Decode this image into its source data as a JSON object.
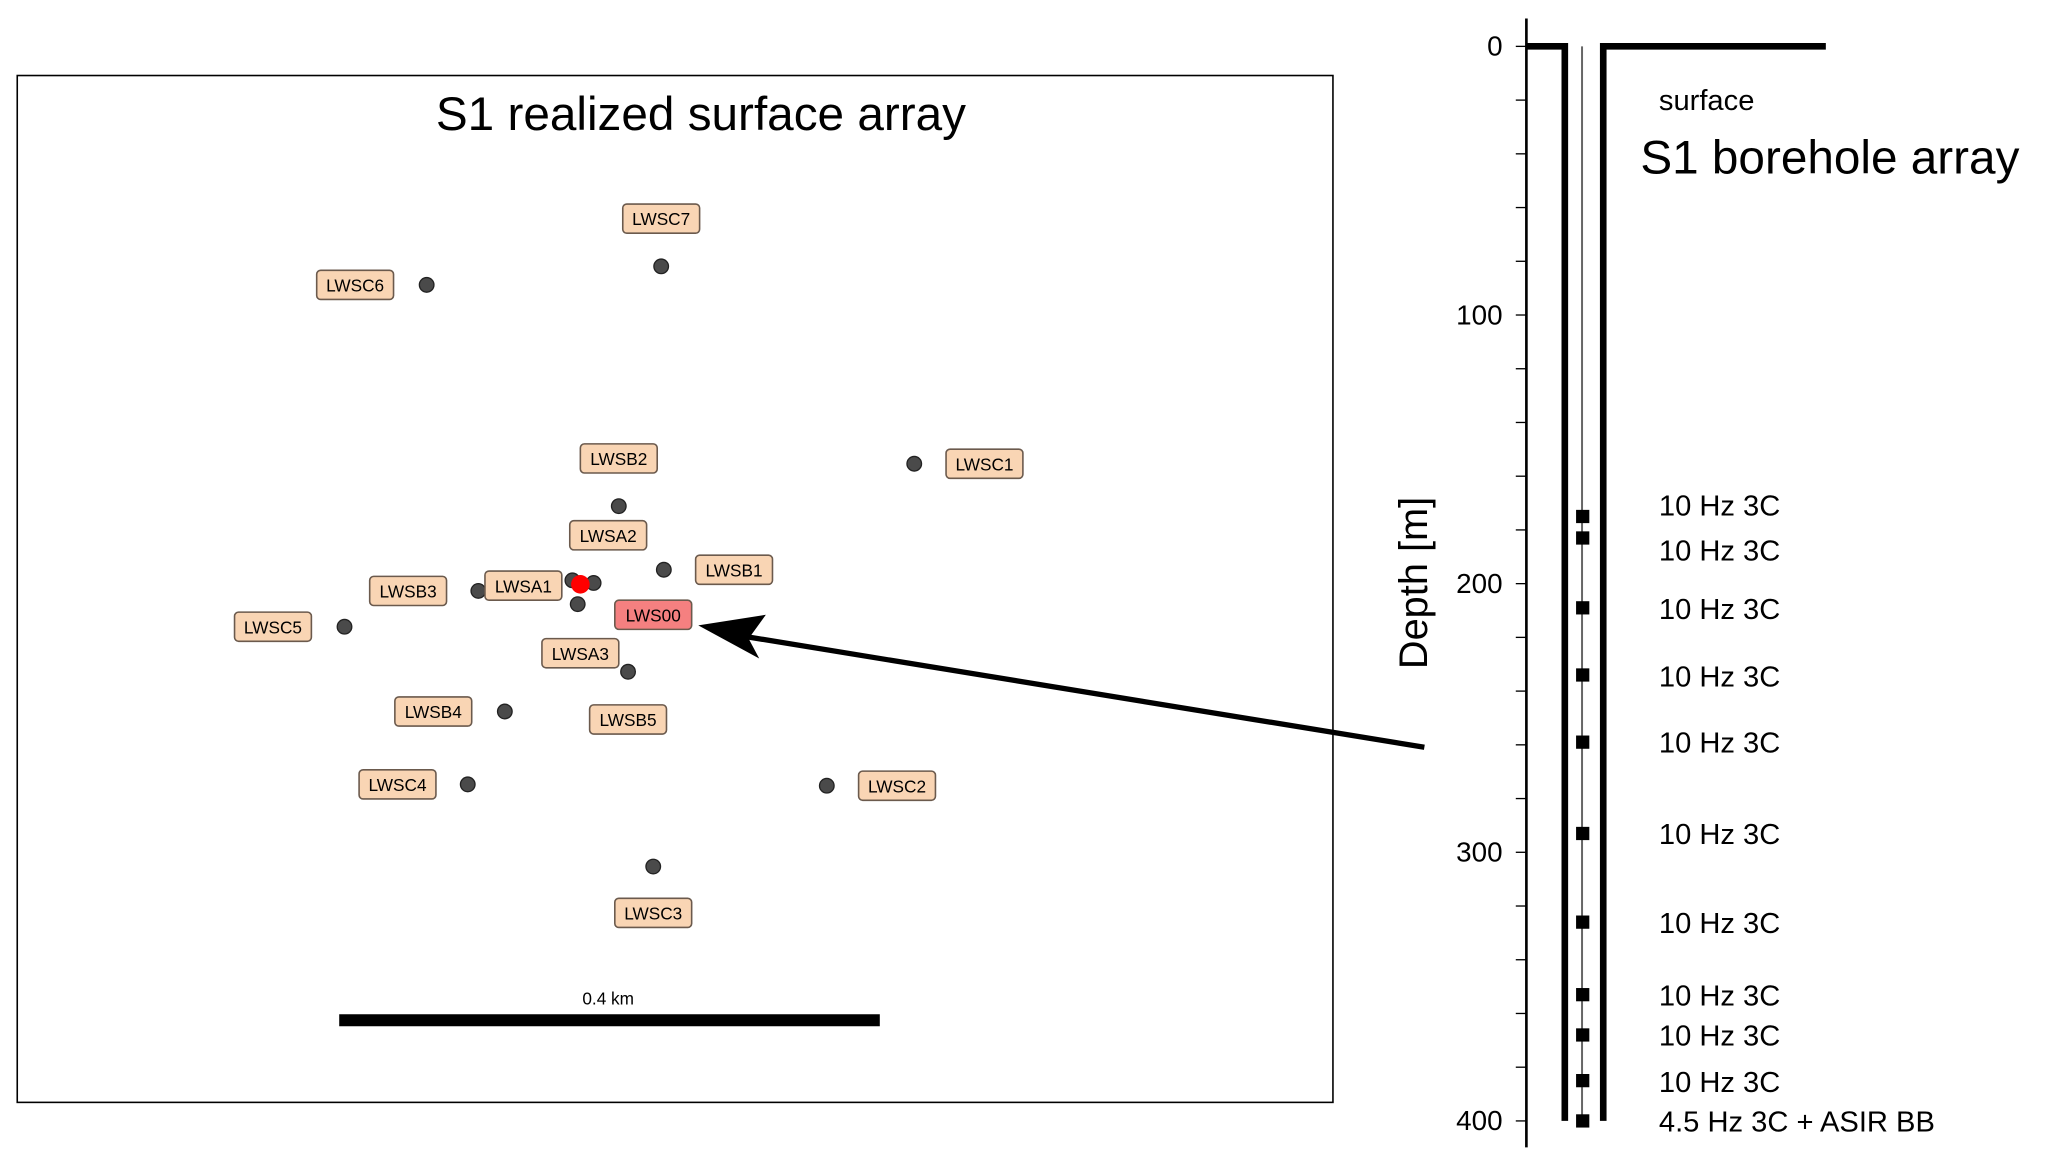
{
  "surface_map": {
    "title": "S1 realized surface array",
    "scale_bar_label": "0.4 km",
    "station_color": "#4a4a4a",
    "label_fill": "#f9d5b4",
    "reference_station": {
      "name": "LWS00",
      "color": "#ff0000",
      "label_fill": "#f58080"
    },
    "stations": [
      "LWSC7",
      "LWSC6",
      "LWSC1",
      "LWSB2",
      "LWSA2",
      "LWSB1",
      "LWSB3",
      "LWSA1",
      "LWSC5",
      "LWSA3",
      "LWSB4",
      "LWSB5",
      "LWSC4",
      "LWSC2",
      "LWSC3"
    ]
  },
  "borehole": {
    "title": "S1 borehole array",
    "surface_label": "surface",
    "ylabel": "Depth [m]",
    "ylim": [
      0,
      400
    ],
    "ticks": [
      "0",
      "100",
      "200",
      "300",
      "400"
    ],
    "sensors": [
      {
        "depth": 175,
        "label": "10 Hz 3C"
      },
      {
        "depth": 183,
        "label": "10 Hz 3C"
      },
      {
        "depth": 209,
        "label": "10 Hz 3C"
      },
      {
        "depth": 234,
        "label": "10 Hz 3C"
      },
      {
        "depth": 259,
        "label": "10 Hz 3C"
      },
      {
        "depth": 293,
        "label": "10 Hz 3C"
      },
      {
        "depth": 326,
        "label": "10 Hz 3C"
      },
      {
        "depth": 353,
        "label": "10 Hz 3C"
      },
      {
        "depth": 368,
        "label": "10 Hz 3C"
      },
      {
        "depth": 385,
        "label": "10 Hz 3C"
      },
      {
        "depth": 400,
        "label": "4.5 Hz 3C + ASIR BB"
      }
    ]
  }
}
